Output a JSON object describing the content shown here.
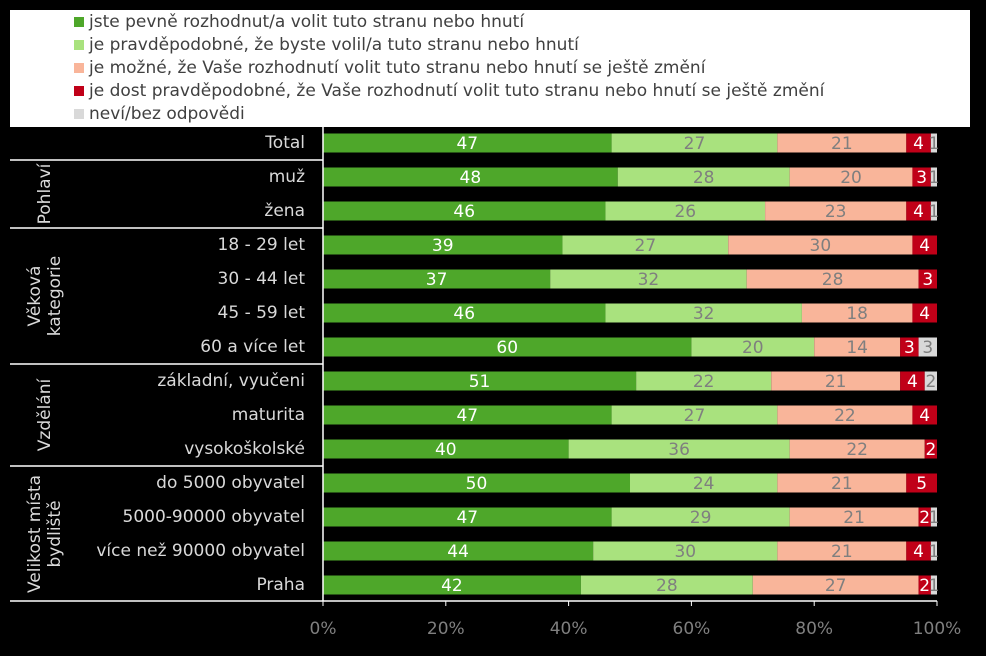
{
  "chart_data": {
    "type": "stacked-bar-horizontal",
    "groups": [
      {
        "categories": [
          "Total"
        ]
      },
      {
        "label": [
          "Pohlaví"
        ],
        "categories": [
          "muž",
          "žena"
        ]
      },
      {
        "label": [
          "Věková",
          "kategorie"
        ],
        "categories": [
          "18 - 29 let",
          "30 - 44 let",
          "45 - 59 let",
          "60 a více let"
        ]
      },
      {
        "label": [
          "Vzdělání"
        ],
        "categories": [
          "základní, vyučeni",
          "maturita",
          "vysokoškolské"
        ]
      },
      {
        "label": [
          "Velikost místa",
          "bydliště"
        ],
        "categories": [
          "do 5000 obyvatel",
          "5000-90000 obyvatel",
          "více než 90000 obyvatel",
          "Praha"
        ]
      }
    ],
    "series": [
      {
        "name": "jste pevně rozhodnut/a volit tuto stranu nebo hnutí",
        "color": "#4ea72a",
        "label_color": "#ffffff",
        "values": [
          47,
          48,
          46,
          39,
          37,
          46,
          60,
          51,
          47,
          40,
          50,
          47,
          44,
          42
        ]
      },
      {
        "name": "je pravděpodobné, že byste volil/a tuto stranu nebo hnutí",
        "color": "#a9e27e",
        "label_color": "#7f7f7f",
        "values": [
          27,
          28,
          26,
          27,
          32,
          32,
          20,
          22,
          27,
          36,
          24,
          29,
          30,
          28
        ]
      },
      {
        "name": "je možné, že Vaše rozhodnutí volit tuto stranu nebo hnutí se ještě změní",
        "color": "#f9b59a",
        "label_color": "#7f7f7f",
        "values": [
          21,
          20,
          23,
          30,
          28,
          18,
          14,
          21,
          22,
          22,
          21,
          21,
          21,
          27
        ]
      },
      {
        "name": "je dost pravděpodobné, že Vaše rozhodnutí volit tuto stranu nebo hnutí se ještě změní",
        "color": "#c00018",
        "label_color": "#ffffff",
        "values": [
          4,
          3,
          4,
          4,
          3,
          4,
          3,
          4,
          4,
          2,
          5,
          2,
          4,
          2
        ]
      },
      {
        "name": "neví/bez odpovědi",
        "color": "#d9d9d9",
        "label_color": "#7f7f7f",
        "values": [
          1,
          1,
          1,
          null,
          null,
          null,
          3,
          2,
          null,
          null,
          null,
          1,
          1,
          1
        ]
      }
    ],
    "xlim": [
      0,
      100
    ],
    "xticks": [
      {
        "value": 0,
        "label": "0%"
      },
      {
        "value": 20,
        "label": "20%"
      },
      {
        "value": 40,
        "label": "40%"
      },
      {
        "value": 60,
        "label": "60%"
      },
      {
        "value": 80,
        "label": "80%"
      },
      {
        "value": 100,
        "label": "100%"
      }
    ]
  }
}
